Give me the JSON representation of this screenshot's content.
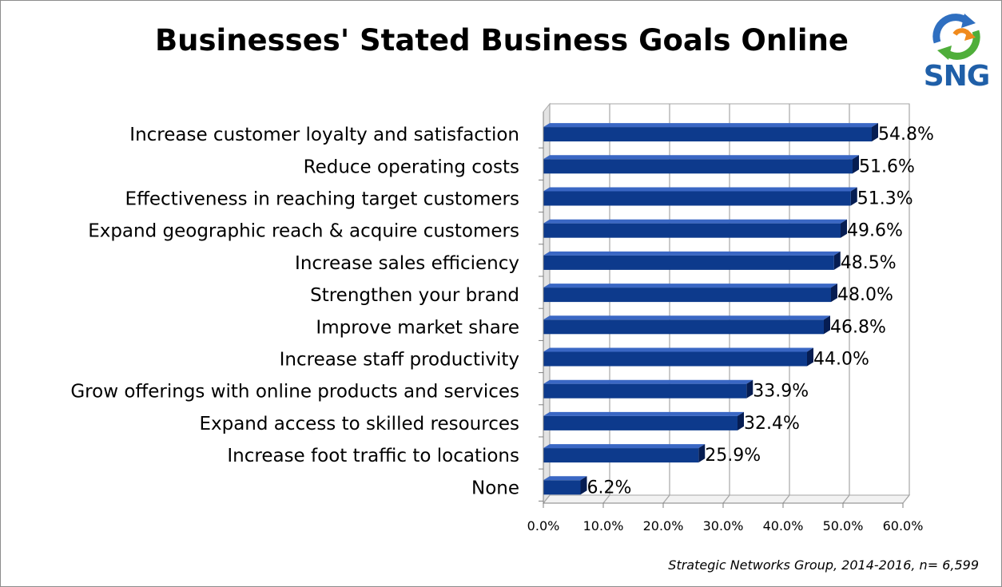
{
  "logo": {
    "text": "SNG",
    "icon": "recycle-arrows-icon"
  },
  "source": "Strategic Networks Group, 2014-2016, n= 6,599",
  "colors": {
    "bar": "#0d3a8c",
    "bar_top": "#3a67c4",
    "bar_end": "#061d52",
    "grid": "#a6a6a6",
    "wall": "#e3e3e3"
  },
  "chart_data": {
    "type": "bar",
    "orientation": "horizontal",
    "title": "Businesses' Stated Business Goals Online",
    "categories": [
      "Increase customer loyalty and satisfaction",
      "Reduce operating costs",
      "Effectiveness in reaching target customers",
      "Expand geographic reach & acquire customers",
      "Increase sales efficiency",
      "Strengthen your brand",
      "Improve market share",
      "Increase staff productivity",
      "Grow offerings with online products and services",
      "Expand access to skilled resources",
      "Increase foot traffic to locations",
      "None"
    ],
    "values": [
      54.8,
      51.6,
      51.3,
      49.6,
      48.5,
      48.0,
      46.8,
      44.0,
      33.9,
      32.4,
      25.9,
      6.2
    ],
    "value_labels": [
      "54.8%",
      "51.6%",
      "51.3%",
      "49.6%",
      "48.5%",
      "48.0%",
      "46.8%",
      "44.0%",
      "33.9%",
      "32.4%",
      "25.9%",
      "6.2%"
    ],
    "xticks": [
      "0.0%",
      "10.0%",
      "20.0%",
      "30.0%",
      "40.0%",
      "50.0%",
      "60.0%"
    ],
    "xlim": [
      0,
      60
    ],
    "grid": true,
    "legend": "none"
  }
}
